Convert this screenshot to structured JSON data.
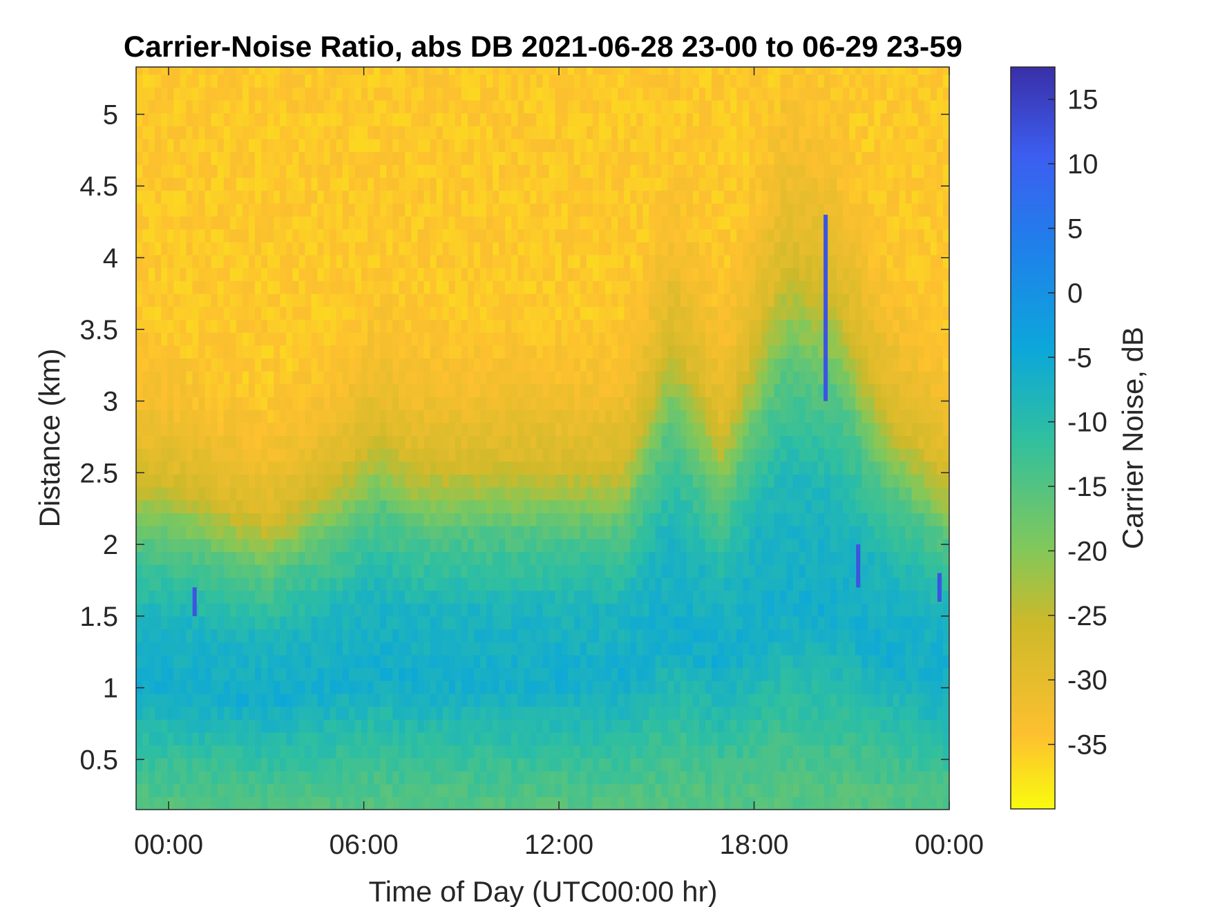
{
  "chart_data": {
    "type": "heatmap",
    "title": "Carrier-Noise Ratio, abs DB 2021-06-28 23-00 to 06-29 23-59",
    "xlabel": "Time of Day (UTC00:00 hr)",
    "ylabel": "Distance (km)",
    "colorbar_label": "Carrier Noise, dB",
    "x_ticks": [
      "00:00",
      "06:00",
      "12:00",
      "18:00",
      "00:00"
    ],
    "x_tick_hours": [
      0,
      6,
      12,
      18,
      24
    ],
    "xlim_hours": [
      -1,
      24
    ],
    "y_ticks": [
      "0.5",
      "1",
      "1.5",
      "2",
      "2.5",
      "3",
      "3.5",
      "4",
      "4.5",
      "5"
    ],
    "y_tick_values": [
      0.5,
      1,
      1.5,
      2,
      2.5,
      3,
      3.5,
      4,
      4.5,
      5
    ],
    "ylim": [
      0.15,
      5.33
    ],
    "colorbar_ticks": [
      "15",
      "10",
      "5",
      "0",
      "-5",
      "-10",
      "-15",
      "-20",
      "-25",
      "-30",
      "-35"
    ],
    "colorbar_tick_values": [
      15,
      10,
      5,
      0,
      -5,
      -10,
      -15,
      -20,
      -25,
      -30,
      -35
    ],
    "clim": [
      -40,
      17.5
    ],
    "colormap": "parula",
    "grid": false,
    "boundary_layer_top_km": [
      {
        "hour": -1,
        "km": 2.5
      },
      {
        "hour": 0,
        "km": 2.5
      },
      {
        "hour": 3,
        "km": 2.2
      },
      {
        "hour": 5,
        "km": 2.5
      },
      {
        "hour": 6.5,
        "km": 2.8
      },
      {
        "hour": 7.5,
        "km": 2.6
      },
      {
        "hour": 11,
        "km": 2.6
      },
      {
        "hour": 14,
        "km": 2.6
      },
      {
        "hour": 15.5,
        "km": 3.5
      },
      {
        "hour": 17,
        "km": 2.8
      },
      {
        "hour": 19,
        "km": 4.0
      },
      {
        "hour": 20.5,
        "km": 3.8
      },
      {
        "hour": 22,
        "km": 3.0
      },
      {
        "hour": 24,
        "km": 2.5
      }
    ],
    "cn_by_height": {
      "heights_km": [
        0.2,
        0.5,
        1.0,
        1.5,
        2.0,
        2.5,
        3.0,
        3.5,
        5.3
      ],
      "values_db": [
        -15,
        -12,
        -6,
        -8,
        -15,
        -28,
        -33,
        -35,
        -35
      ]
    },
    "strong_echo_streaks": [
      {
        "hour": 0.8,
        "km_from": 1.5,
        "km_to": 1.7
      },
      {
        "hour": 20.2,
        "km_from": 3.0,
        "km_to": 4.3
      },
      {
        "hour": 21.2,
        "km_from": 1.7,
        "km_to": 2.0
      },
      {
        "hour": 23.7,
        "km_from": 1.6,
        "km_to": 1.8
      }
    ]
  }
}
